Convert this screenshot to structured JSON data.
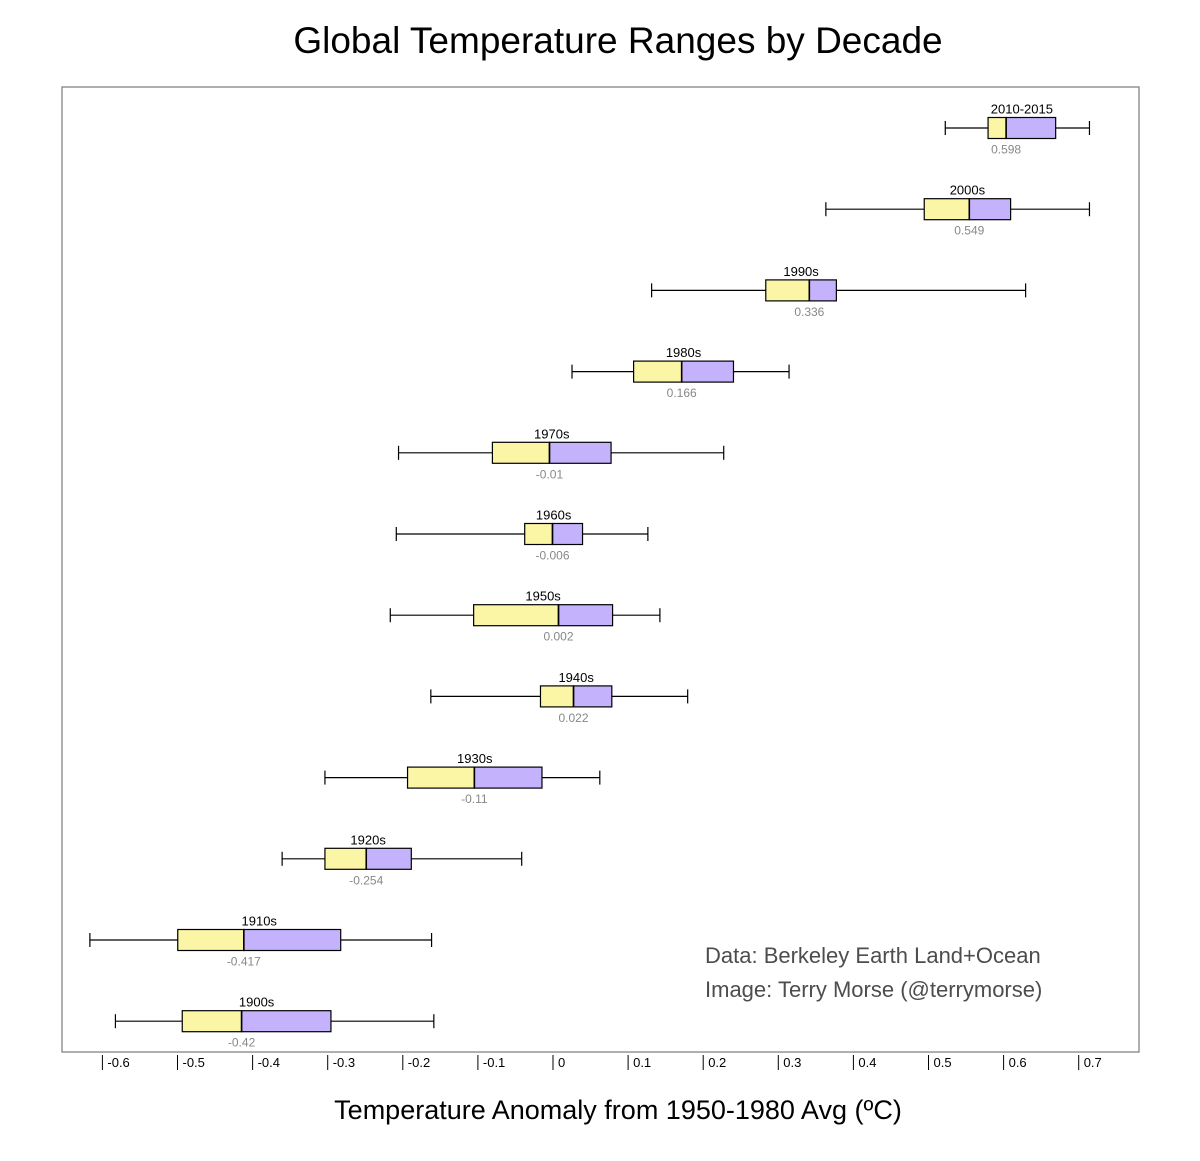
{
  "chart_data": {
    "type": "boxplot",
    "orientation": "horizontal",
    "title": "Global Temperature Ranges by Decade",
    "xlabel": "Temperature Anomaly from 1950-1980 Avg (ºC)",
    "ylabel": "",
    "xlim": [
      -0.66,
      0.77
    ],
    "xticks": [
      "-0.6",
      "-0.5",
      "-0.4",
      "-0.3",
      "-0.2",
      "-0.1",
      "0",
      "0.1",
      "0.2",
      "0.3",
      "0.4",
      "0.5",
      "0.6",
      "0.7"
    ],
    "colors": {
      "lower_box": "#fbf5a6",
      "upper_box": "#c4b2fd",
      "median_label": "#888888",
      "frame": "#7a7a7a",
      "whisker": "#000000"
    },
    "series": [
      {
        "name": "2010-2015",
        "min": 0.517,
        "q1": 0.574,
        "median": 0.598,
        "q3": 0.664,
        "max": 0.709,
        "median_label": "0.598"
      },
      {
        "name": "2000s",
        "min": 0.358,
        "q1": 0.489,
        "median": 0.549,
        "q3": 0.604,
        "max": 0.709,
        "median_label": "0.549"
      },
      {
        "name": "1990s",
        "min": 0.126,
        "q1": 0.278,
        "median": 0.336,
        "q3": 0.372,
        "max": 0.624,
        "median_label": "0.336"
      },
      {
        "name": "1980s",
        "min": 0.02,
        "q1": 0.102,
        "median": 0.166,
        "q3": 0.235,
        "max": 0.309,
        "median_label": "0.166"
      },
      {
        "name": "1970s",
        "min": -0.211,
        "q1": -0.086,
        "median": -0.01,
        "q3": 0.072,
        "max": 0.222,
        "median_label": "-0.01"
      },
      {
        "name": "1960s",
        "min": -0.214,
        "q1": -0.043,
        "median": -0.006,
        "q3": 0.034,
        "max": 0.121,
        "median_label": "-0.006"
      },
      {
        "name": "1950s",
        "min": -0.222,
        "q1": -0.111,
        "median": 0.002,
        "q3": 0.074,
        "max": 0.137,
        "median_label": "0.002"
      },
      {
        "name": "1940s",
        "min": -0.168,
        "q1": -0.022,
        "median": 0.022,
        "q3": 0.073,
        "max": 0.174,
        "median_label": "0.022"
      },
      {
        "name": "1930s",
        "min": -0.309,
        "q1": -0.199,
        "median": -0.11,
        "q3": -0.02,
        "max": 0.057,
        "median_label": "-0.11"
      },
      {
        "name": "1920s",
        "min": -0.366,
        "q1": -0.309,
        "median": -0.254,
        "q3": -0.194,
        "max": -0.047,
        "median_label": "-0.254"
      },
      {
        "name": "1910s",
        "min": -0.622,
        "q1": -0.505,
        "median": -0.417,
        "q3": -0.288,
        "max": -0.167,
        "median_label": "-0.417"
      },
      {
        "name": "1900s",
        "min": -0.588,
        "q1": -0.499,
        "median": -0.42,
        "q3": -0.301,
        "max": -0.164,
        "median_label": "-0.42"
      }
    ],
    "annotations": [
      "Data: Berkeley Earth Land+Ocean",
      "Image: Terry Morse (@terrymorse)"
    ]
  }
}
